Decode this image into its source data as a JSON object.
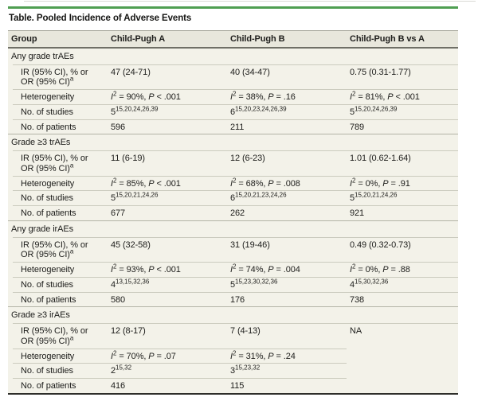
{
  "colors": {
    "accent_green": "#4f9e51",
    "header_bg": "#e8e7dc",
    "body_bg": "#f3f2e9"
  },
  "table": {
    "title": "Table. Pooled Incidence of Adverse Events",
    "columns": [
      "Group",
      "Child-Pugh A",
      "Child-Pugh B",
      "Child-Pugh B vs A"
    ],
    "labels": {
      "ir": [
        {
          "t": "IR (95% CI), % or"
        },
        {
          "br": true
        },
        {
          "t": "OR (95% CI)"
        },
        {
          "t": "a",
          "sup": true
        }
      ],
      "het": [
        {
          "t": "Heterogeneity"
        }
      ],
      "studies": [
        {
          "t": "No. of studies"
        }
      ],
      "patients": [
        {
          "t": "No. of patients"
        }
      ]
    },
    "sections": [
      {
        "name": "Any grade trAEs",
        "rows": [
          {
            "label": "ir",
            "cells": [
              [
                {
                  "t": "47 (24-71)"
                }
              ],
              [
                {
                  "t": "40 (34-47)"
                }
              ],
              [
                {
                  "t": "0.75 (0.31-1.77)"
                }
              ]
            ]
          },
          {
            "label": "het",
            "cells": [
              [
                {
                  "t": "I",
                  "i": true
                },
                {
                  "t": "2",
                  "sup": true
                },
                {
                  "t": " = 90%, "
                },
                {
                  "t": "P",
                  "i": true
                },
                {
                  "t": " < .001"
                }
              ],
              [
                {
                  "t": "I",
                  "i": true
                },
                {
                  "t": "2",
                  "sup": true
                },
                {
                  "t": " = 38%, "
                },
                {
                  "t": "P",
                  "i": true
                },
                {
                  "t": " = .16"
                }
              ],
              [
                {
                  "t": "I",
                  "i": true
                },
                {
                  "t": "2",
                  "sup": true
                },
                {
                  "t": " = 81%, "
                },
                {
                  "t": "P",
                  "i": true
                },
                {
                  "t": " < .001"
                }
              ]
            ]
          },
          {
            "label": "studies",
            "cells": [
              [
                {
                  "t": "5"
                },
                {
                  "t": "15,20,24,26,39",
                  "sup": true
                }
              ],
              [
                {
                  "t": "6"
                },
                {
                  "t": "15,20,23,24,26,39",
                  "sup": true
                }
              ],
              [
                {
                  "t": "5"
                },
                {
                  "t": "15,20,24,26,39",
                  "sup": true
                }
              ]
            ]
          },
          {
            "label": "patients",
            "cells": [
              [
                {
                  "t": "596"
                }
              ],
              [
                {
                  "t": "211"
                }
              ],
              [
                {
                  "t": "789"
                }
              ]
            ]
          }
        ]
      },
      {
        "name": "Grade ≥3 trAEs",
        "rows": [
          {
            "label": "ir",
            "cells": [
              [
                {
                  "t": "11 (6-19)"
                }
              ],
              [
                {
                  "t": "12 (6-23)"
                }
              ],
              [
                {
                  "t": "1.01 (0.62-1.64)"
                }
              ]
            ]
          },
          {
            "label": "het",
            "cells": [
              [
                {
                  "t": "I",
                  "i": true
                },
                {
                  "t": "2",
                  "sup": true
                },
                {
                  "t": " = 85%, "
                },
                {
                  "t": "P",
                  "i": true
                },
                {
                  "t": " < .001"
                }
              ],
              [
                {
                  "t": "I",
                  "i": true
                },
                {
                  "t": "2",
                  "sup": true
                },
                {
                  "t": " = 68%, "
                },
                {
                  "t": "P",
                  "i": true
                },
                {
                  "t": " = .008"
                }
              ],
              [
                {
                  "t": "I",
                  "i": true
                },
                {
                  "t": "2",
                  "sup": true
                },
                {
                  "t": " = 0%, "
                },
                {
                  "t": "P",
                  "i": true
                },
                {
                  "t": " = .91"
                }
              ]
            ]
          },
          {
            "label": "studies",
            "cells": [
              [
                {
                  "t": "5"
                },
                {
                  "t": "15,20,21,24,26",
                  "sup": true
                }
              ],
              [
                {
                  "t": "6"
                },
                {
                  "t": "15,20,21,23,24,26",
                  "sup": true
                }
              ],
              [
                {
                  "t": "5"
                },
                {
                  "t": "15,20,21,24,26",
                  "sup": true
                }
              ]
            ]
          },
          {
            "label": "patients",
            "cells": [
              [
                {
                  "t": "677"
                }
              ],
              [
                {
                  "t": "262"
                }
              ],
              [
                {
                  "t": "921"
                }
              ]
            ]
          }
        ]
      },
      {
        "name": "Any grade irAEs",
        "rows": [
          {
            "label": "ir",
            "cells": [
              [
                {
                  "t": "45 (32-58)"
                }
              ],
              [
                {
                  "t": "31 (19-46)"
                }
              ],
              [
                {
                  "t": "0.49 (0.32-0.73)"
                }
              ]
            ]
          },
          {
            "label": "het",
            "cells": [
              [
                {
                  "t": "I",
                  "i": true
                },
                {
                  "t": "2",
                  "sup": true
                },
                {
                  "t": " = 93%, "
                },
                {
                  "t": "P",
                  "i": true
                },
                {
                  "t": " < .001"
                }
              ],
              [
                {
                  "t": "I",
                  "i": true
                },
                {
                  "t": "2",
                  "sup": true
                },
                {
                  "t": " = 74%, "
                },
                {
                  "t": "P",
                  "i": true
                },
                {
                  "t": " = .004"
                }
              ],
              [
                {
                  "t": "I",
                  "i": true
                },
                {
                  "t": "2",
                  "sup": true
                },
                {
                  "t": " = 0%, "
                },
                {
                  "t": "P",
                  "i": true
                },
                {
                  "t": " = .88"
                }
              ]
            ]
          },
          {
            "label": "studies",
            "cells": [
              [
                {
                  "t": "4"
                },
                {
                  "t": "13,15,32,36",
                  "sup": true
                }
              ],
              [
                {
                  "t": "5"
                },
                {
                  "t": "15,23,30,32,36",
                  "sup": true
                }
              ],
              [
                {
                  "t": "4"
                },
                {
                  "t": "15,30,32,36",
                  "sup": true
                }
              ]
            ]
          },
          {
            "label": "patients",
            "cells": [
              [
                {
                  "t": "580"
                }
              ],
              [
                {
                  "t": "176"
                }
              ],
              [
                {
                  "t": "738"
                }
              ]
            ]
          }
        ]
      },
      {
        "name": "Grade ≥3 irAEs",
        "merged_last": "NA",
        "rows": [
          {
            "label": "ir",
            "cells": [
              [
                {
                  "t": "12 (8-17)"
                }
              ],
              [
                {
                  "t": "7 (4-13)"
                }
              ]
            ]
          },
          {
            "label": "het",
            "cells": [
              [
                {
                  "t": "I",
                  "i": true
                },
                {
                  "t": "2",
                  "sup": true
                },
                {
                  "t": " = 70%, "
                },
                {
                  "t": "P",
                  "i": true
                },
                {
                  "t": " = .07"
                }
              ],
              [
                {
                  "t": "I",
                  "i": true
                },
                {
                  "t": "2",
                  "sup": true
                },
                {
                  "t": " = 31%, "
                },
                {
                  "t": "P",
                  "i": true
                },
                {
                  "t": " = .24"
                }
              ]
            ]
          },
          {
            "label": "studies",
            "cells": [
              [
                {
                  "t": "2"
                },
                {
                  "t": "15,32",
                  "sup": true
                }
              ],
              [
                {
                  "t": "3"
                },
                {
                  "t": "15,23,32",
                  "sup": true
                }
              ]
            ]
          },
          {
            "label": "patients",
            "cells": [
              [
                {
                  "t": "416"
                }
              ],
              [
                {
                  "t": "115"
                }
              ]
            ]
          }
        ]
      }
    ]
  }
}
